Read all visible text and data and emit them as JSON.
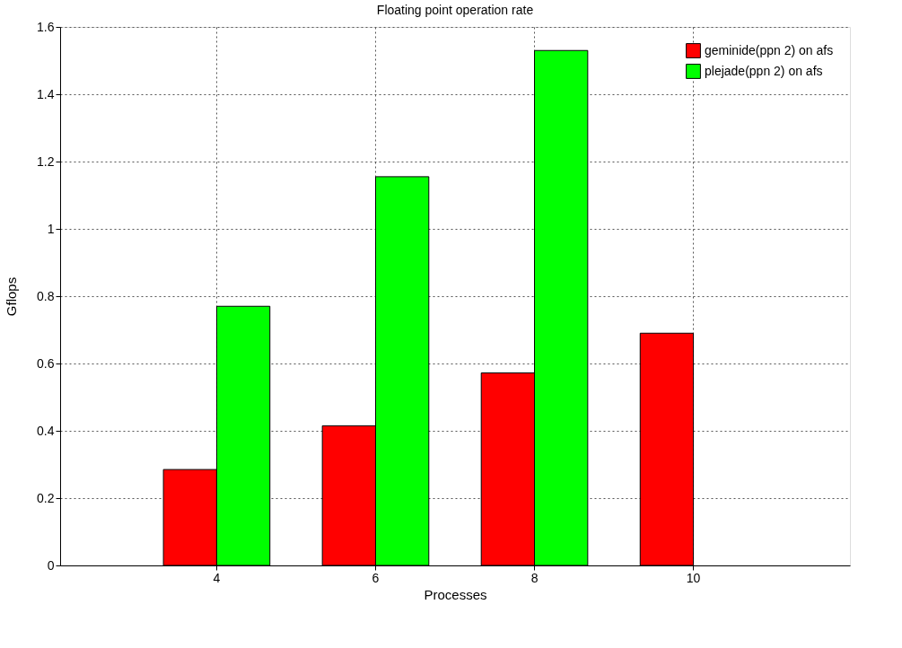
{
  "chart_data": {
    "type": "bar",
    "title": "Floating point operation rate",
    "xlabel": "Processes",
    "ylabel": "Gflops",
    "categories": [
      "4",
      "6",
      "8",
      "10"
    ],
    "series": [
      {
        "name": "geminide(ppn 2) on afs",
        "color": "#ff0000",
        "values": [
          0.285,
          0.415,
          0.572,
          0.69
        ]
      },
      {
        "name": "plejade(ppn 2) on afs",
        "color": "#00ff00",
        "values": [
          0.77,
          1.155,
          1.53,
          null
        ]
      }
    ],
    "ylim": [
      0,
      1.6
    ],
    "yticks": [
      0,
      0.2,
      0.4,
      0.6,
      0.8,
      1,
      1.2,
      1.4,
      1.6
    ],
    "grid": true,
    "legend": "top right"
  }
}
